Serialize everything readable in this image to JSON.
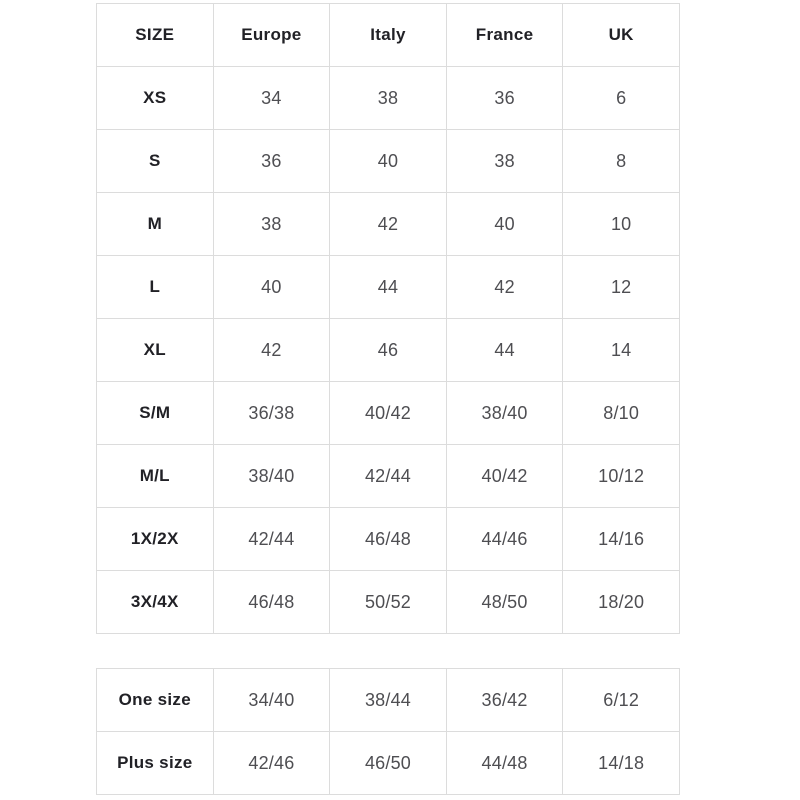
{
  "colors": {
    "background": "#ffffff",
    "border": "#dcdcdc",
    "header_text": "#212126",
    "value_text": "#4e4e52"
  },
  "tables": {
    "main": {
      "headers": [
        "SIZE",
        "Europe",
        "Italy",
        "France",
        "UK"
      ],
      "rows": [
        {
          "label": "XS",
          "values": [
            "34",
            "38",
            "36",
            "6"
          ]
        },
        {
          "label": "S",
          "values": [
            "36",
            "40",
            "38",
            "8"
          ]
        },
        {
          "label": "M",
          "values": [
            "38",
            "42",
            "40",
            "10"
          ]
        },
        {
          "label": "L",
          "values": [
            "40",
            "44",
            "42",
            "12"
          ]
        },
        {
          "label": "XL",
          "values": [
            "42",
            "46",
            "44",
            "14"
          ]
        },
        {
          "label": "S/M",
          "values": [
            "36/38",
            "40/42",
            "38/40",
            "8/10"
          ]
        },
        {
          "label": "M/L",
          "values": [
            "38/40",
            "42/44",
            "40/42",
            "10/12"
          ]
        },
        {
          "label": "1X/2X",
          "values": [
            "42/44",
            "46/48",
            "44/46",
            "14/16"
          ]
        },
        {
          "label": "3X/4X",
          "values": [
            "46/48",
            "50/52",
            "48/50",
            "18/20"
          ]
        }
      ]
    },
    "special": {
      "rows": [
        {
          "label": "One size",
          "values": [
            "34/40",
            "38/44",
            "36/42",
            "6/12"
          ]
        },
        {
          "label": "Plus size",
          "values": [
            "42/46",
            "46/50",
            "44/48",
            "14/18"
          ]
        }
      ]
    }
  }
}
